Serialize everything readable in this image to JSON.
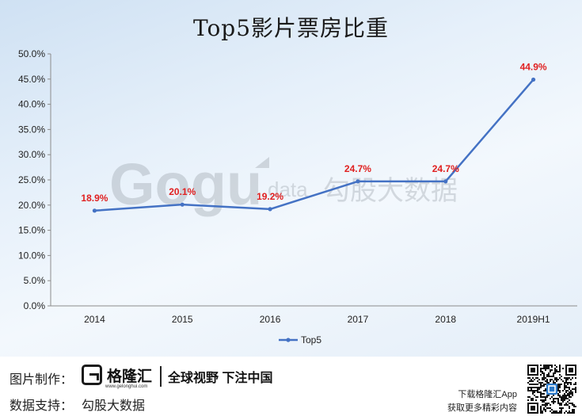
{
  "chart_data": {
    "type": "line",
    "title": "Top5影片票房比重",
    "categories": [
      "2014",
      "2015",
      "2016",
      "2017",
      "2018",
      "2019H1"
    ],
    "series": [
      {
        "name": "Top5",
        "values": [
          18.9,
          20.1,
          19.2,
          24.7,
          24.7,
          44.9
        ],
        "color": "#4472c4"
      }
    ],
    "data_labels": [
      "18.9%",
      "20.1%",
      "19.2%",
      "24.7%",
      "24.7%",
      "44.9%"
    ],
    "data_label_color": "#e02020",
    "y_ticks": [
      "0.0%",
      "5.0%",
      "10.0%",
      "15.0%",
      "20.0%",
      "25.0%",
      "30.0%",
      "35.0%",
      "40.0%",
      "45.0%",
      "50.0%"
    ],
    "ylim": [
      0,
      50
    ],
    "grid": false,
    "legend": "bottom"
  },
  "watermark": {
    "text": "Gogu data 勾股大数据"
  },
  "footer": {
    "maker_label": "图片制作：",
    "brand_name": "格隆汇",
    "brand_url": "www.gelonghui.com",
    "slogan": "全球视野 下注中国",
    "data_label": "数据支持：",
    "data_source": "勾股大数据",
    "app_line1": "下载格隆汇App",
    "app_line2": "获取更多精彩内容",
    "qr_icon": "qr-code-icon"
  }
}
